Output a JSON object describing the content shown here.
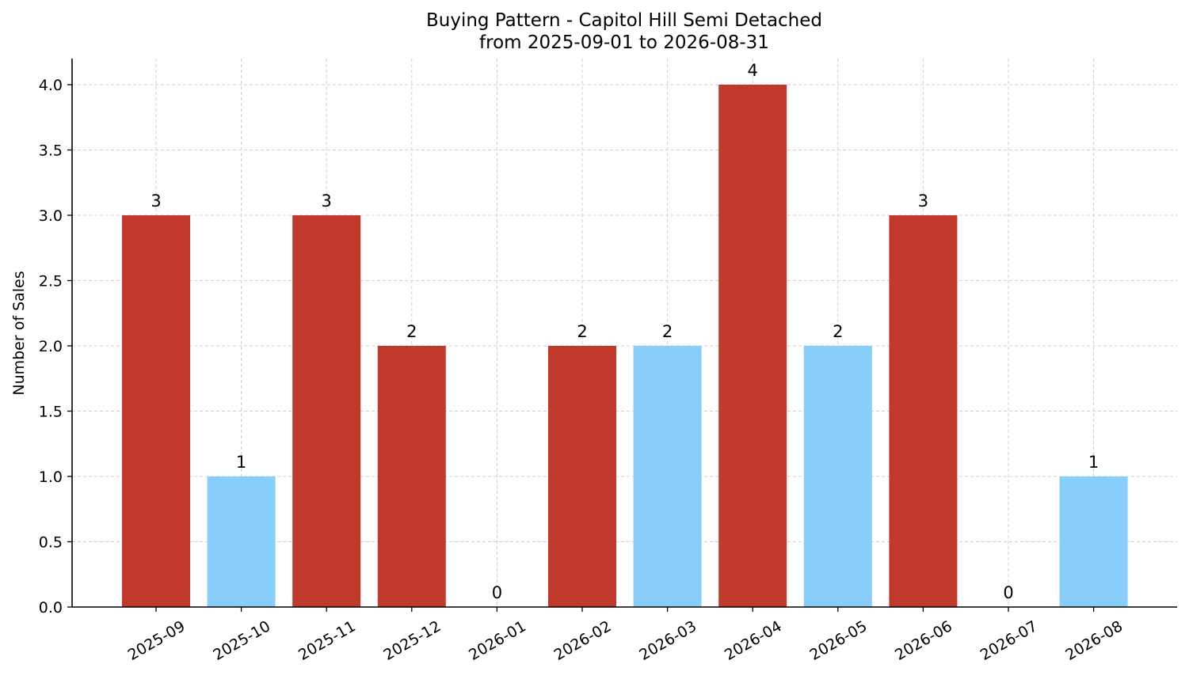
{
  "chart_data": {
    "type": "bar",
    "title": "Buying Pattern - Capitol Hill Semi Detached",
    "subtitle": "from 2025-09-01 to 2026-08-31",
    "xlabel": "",
    "ylabel": "Number of Sales",
    "ylim": [
      0,
      4.2
    ],
    "yticks": [
      "0.0",
      "0.5",
      "1.0",
      "1.5",
      "2.0",
      "2.5",
      "3.0",
      "3.5",
      "4.0"
    ],
    "grid": true,
    "categories": [
      "2025-09",
      "2025-10",
      "2025-11",
      "2025-12",
      "2026-01",
      "2026-02",
      "2026-03",
      "2026-04",
      "2026-05",
      "2026-06",
      "2026-07",
      "2026-08"
    ],
    "values": [
      3,
      1,
      3,
      2,
      0,
      2,
      2,
      4,
      2,
      3,
      0,
      1
    ],
    "bar_colors": [
      "#c0392b",
      "#87cefa",
      "#c0392b",
      "#c0392b",
      "#c0392b",
      "#c0392b",
      "#87cefa",
      "#c0392b",
      "#87cefa",
      "#c0392b",
      "#c0392b",
      "#87cefa"
    ],
    "data_labels": [
      "3",
      "1",
      "3",
      "2",
      "0",
      "2",
      "2",
      "4",
      "2",
      "3",
      "0",
      "1"
    ]
  }
}
